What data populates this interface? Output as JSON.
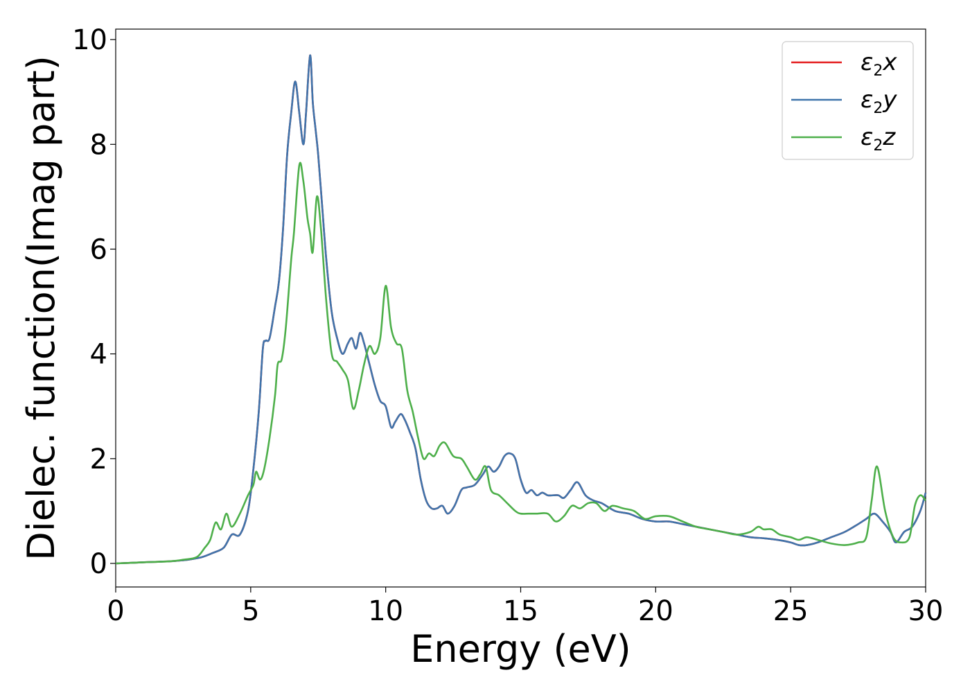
{
  "chart_data": {
    "type": "line",
    "xlabel": "Energy (eV)",
    "ylabel": "Dielec. function(Imag part)",
    "xlim": [
      0,
      30
    ],
    "ylim": [
      -0.45,
      10.2
    ],
    "xticks": [
      0,
      5,
      10,
      15,
      20,
      25,
      30
    ],
    "yticks": [
      0,
      2,
      4,
      6,
      8,
      10
    ],
    "xtick_labels": [
      "0",
      "5",
      "10",
      "15",
      "20",
      "25",
      "30"
    ],
    "ytick_labels": [
      "0",
      "2",
      "4",
      "6",
      "8",
      "10"
    ],
    "grid": false,
    "legend_position": "top-right",
    "series": [
      {
        "name": "ε₂x",
        "symbol": "ε",
        "sub": "2",
        "axis": "x",
        "color": "#e41a1c",
        "x": [
          0,
          1,
          2,
          2.5,
          2.8,
          3.2,
          3.6,
          4.0,
          4.3,
          4.6,
          4.9,
          5.1,
          5.3,
          5.45,
          5.55,
          5.7,
          5.9,
          6.05,
          6.2,
          6.35,
          6.5,
          6.65,
          6.8,
          6.95,
          7.05,
          7.2,
          7.3,
          7.4,
          7.5,
          7.65,
          7.8,
          8.0,
          8.2,
          8.4,
          8.6,
          8.75,
          8.9,
          9.05,
          9.2,
          9.4,
          9.6,
          9.8,
          10.0,
          10.2,
          10.35,
          10.55,
          10.7,
          10.9,
          11.1,
          11.3,
          11.5,
          11.7,
          11.9,
          12.1,
          12.3,
          12.55,
          12.8,
          13.0,
          13.3,
          13.6,
          13.8,
          14.0,
          14.2,
          14.4,
          14.6,
          14.8,
          15.0,
          15.2,
          15.4,
          15.6,
          15.8,
          16.0,
          16.2,
          16.4,
          16.6,
          16.85,
          17.1,
          17.4,
          17.7,
          18.0,
          18.5,
          19.0,
          19.5,
          20.0,
          20.5,
          21.0,
          21.5,
          22.0,
          22.5,
          23.0,
          23.5,
          24.0,
          24.5,
          25.0,
          25.3,
          25.6,
          26.0,
          26.5,
          27.0,
          27.5,
          27.8,
          28.1,
          28.4,
          28.7,
          28.9,
          29.2,
          29.5,
          29.8,
          30.0
        ],
        "y": [
          0,
          0.02,
          0.04,
          0.06,
          0.08,
          0.12,
          0.2,
          0.3,
          0.55,
          0.55,
          1.0,
          1.8,
          2.9,
          4.1,
          4.25,
          4.3,
          4.9,
          5.4,
          6.4,
          7.8,
          8.6,
          9.2,
          8.6,
          8.0,
          8.6,
          9.7,
          8.8,
          8.3,
          7.8,
          6.8,
          5.8,
          4.8,
          4.3,
          4.0,
          4.2,
          4.3,
          4.1,
          4.4,
          4.2,
          3.8,
          3.4,
          3.1,
          3.0,
          2.6,
          2.7,
          2.85,
          2.75,
          2.5,
          2.2,
          1.6,
          1.2,
          1.05,
          1.05,
          1.1,
          0.95,
          1.1,
          1.4,
          1.45,
          1.5,
          1.7,
          1.85,
          1.75,
          1.85,
          2.05,
          2.1,
          2.0,
          1.6,
          1.35,
          1.4,
          1.3,
          1.35,
          1.3,
          1.3,
          1.3,
          1.25,
          1.4,
          1.55,
          1.3,
          1.2,
          1.15,
          1.0,
          0.95,
          0.85,
          0.8,
          0.8,
          0.75,
          0.7,
          0.65,
          0.6,
          0.55,
          0.5,
          0.48,
          0.45,
          0.4,
          0.35,
          0.35,
          0.4,
          0.5,
          0.6,
          0.75,
          0.85,
          0.95,
          0.8,
          0.6,
          0.4,
          0.6,
          0.7,
          1.0,
          1.35
        ]
      },
      {
        "name": "ε₂y",
        "symbol": "ε",
        "sub": "2",
        "axis": "y",
        "color": "#3f74ab",
        "x": [
          0,
          1,
          2,
          2.5,
          2.8,
          3.2,
          3.6,
          4.0,
          4.3,
          4.6,
          4.9,
          5.1,
          5.3,
          5.45,
          5.55,
          5.7,
          5.9,
          6.05,
          6.2,
          6.35,
          6.5,
          6.65,
          6.8,
          6.95,
          7.05,
          7.2,
          7.3,
          7.4,
          7.5,
          7.65,
          7.8,
          8.0,
          8.2,
          8.4,
          8.6,
          8.75,
          8.9,
          9.05,
          9.2,
          9.4,
          9.6,
          9.8,
          10.0,
          10.2,
          10.35,
          10.55,
          10.7,
          10.9,
          11.1,
          11.3,
          11.5,
          11.7,
          11.9,
          12.1,
          12.3,
          12.55,
          12.8,
          13.0,
          13.3,
          13.6,
          13.8,
          14.0,
          14.2,
          14.4,
          14.6,
          14.8,
          15.0,
          15.2,
          15.4,
          15.6,
          15.8,
          16.0,
          16.2,
          16.4,
          16.6,
          16.85,
          17.1,
          17.4,
          17.7,
          18.0,
          18.5,
          19.0,
          19.5,
          20.0,
          20.5,
          21.0,
          21.5,
          22.0,
          22.5,
          23.0,
          23.5,
          24.0,
          24.5,
          25.0,
          25.3,
          25.6,
          26.0,
          26.5,
          27.0,
          27.5,
          27.8,
          28.1,
          28.4,
          28.7,
          28.9,
          29.2,
          29.5,
          29.8,
          30.0
        ],
        "y": [
          0,
          0.02,
          0.04,
          0.06,
          0.08,
          0.12,
          0.2,
          0.3,
          0.55,
          0.55,
          1.0,
          1.8,
          2.9,
          4.1,
          4.25,
          4.3,
          4.9,
          5.4,
          6.4,
          7.8,
          8.6,
          9.2,
          8.6,
          8.0,
          8.6,
          9.7,
          8.8,
          8.3,
          7.8,
          6.8,
          5.8,
          4.8,
          4.3,
          4.0,
          4.2,
          4.3,
          4.1,
          4.4,
          4.2,
          3.8,
          3.4,
          3.1,
          3.0,
          2.6,
          2.7,
          2.85,
          2.75,
          2.5,
          2.2,
          1.6,
          1.2,
          1.05,
          1.05,
          1.1,
          0.95,
          1.1,
          1.4,
          1.45,
          1.5,
          1.7,
          1.85,
          1.75,
          1.85,
          2.05,
          2.1,
          2.0,
          1.6,
          1.35,
          1.4,
          1.3,
          1.35,
          1.3,
          1.3,
          1.3,
          1.25,
          1.4,
          1.55,
          1.3,
          1.2,
          1.15,
          1.0,
          0.95,
          0.85,
          0.8,
          0.8,
          0.75,
          0.7,
          0.65,
          0.6,
          0.55,
          0.5,
          0.48,
          0.45,
          0.4,
          0.35,
          0.35,
          0.4,
          0.5,
          0.6,
          0.75,
          0.85,
          0.95,
          0.8,
          0.6,
          0.4,
          0.6,
          0.7,
          1.0,
          1.35
        ]
      },
      {
        "name": "ε₂z",
        "symbol": "ε",
        "sub": "2",
        "axis": "z",
        "color": "#4daf4a",
        "x": [
          0,
          1,
          2,
          2.5,
          3.0,
          3.3,
          3.5,
          3.7,
          3.9,
          4.1,
          4.3,
          4.6,
          4.9,
          5.1,
          5.2,
          5.35,
          5.5,
          5.7,
          5.9,
          6.0,
          6.15,
          6.3,
          6.5,
          6.6,
          6.8,
          6.95,
          7.1,
          7.2,
          7.3,
          7.45,
          7.6,
          7.8,
          8.0,
          8.2,
          8.4,
          8.6,
          8.8,
          9.0,
          9.2,
          9.4,
          9.6,
          9.8,
          10.0,
          10.2,
          10.4,
          10.6,
          10.8,
          11.0,
          11.2,
          11.4,
          11.6,
          11.8,
          12.0,
          12.2,
          12.5,
          12.8,
          13.0,
          13.3,
          13.5,
          13.7,
          13.9,
          14.2,
          14.5,
          14.8,
          15.0,
          15.3,
          15.6,
          16.0,
          16.3,
          16.6,
          16.9,
          17.2,
          17.5,
          17.8,
          18.1,
          18.4,
          18.8,
          19.2,
          19.6,
          20.0,
          20.5,
          21.0,
          21.5,
          22.0,
          22.5,
          23.0,
          23.5,
          23.8,
          24.0,
          24.3,
          24.6,
          25.0,
          25.3,
          25.6,
          26.0,
          26.5,
          27.0,
          27.5,
          27.8,
          28.0,
          28.2,
          28.5,
          28.8,
          29.1,
          29.4,
          29.6,
          29.8,
          30.0
        ],
        "y": [
          0,
          0.02,
          0.04,
          0.07,
          0.12,
          0.3,
          0.45,
          0.78,
          0.65,
          0.95,
          0.7,
          0.95,
          1.3,
          1.5,
          1.75,
          1.6,
          1.8,
          2.4,
          3.2,
          3.8,
          3.9,
          4.5,
          5.8,
          6.3,
          7.6,
          7.3,
          6.6,
          6.3,
          5.95,
          7.0,
          6.4,
          5.0,
          4.0,
          3.85,
          3.7,
          3.5,
          2.95,
          3.3,
          3.8,
          4.15,
          4.0,
          4.3,
          5.3,
          4.5,
          4.2,
          4.1,
          3.3,
          2.9,
          2.4,
          2.0,
          2.1,
          2.05,
          2.25,
          2.3,
          2.05,
          2.0,
          1.85,
          1.6,
          1.7,
          1.85,
          1.4,
          1.3,
          1.15,
          1.0,
          0.95,
          0.95,
          0.95,
          0.95,
          0.8,
          0.9,
          1.1,
          1.05,
          1.15,
          1.15,
          1.0,
          1.1,
          1.05,
          1.0,
          0.85,
          0.9,
          0.9,
          0.8,
          0.7,
          0.65,
          0.6,
          0.55,
          0.6,
          0.7,
          0.65,
          0.65,
          0.55,
          0.5,
          0.45,
          0.5,
          0.45,
          0.38,
          0.35,
          0.4,
          0.5,
          1.2,
          1.85,
          1.0,
          0.5,
          0.4,
          0.5,
          1.1,
          1.3,
          1.2
        ]
      }
    ]
  }
}
